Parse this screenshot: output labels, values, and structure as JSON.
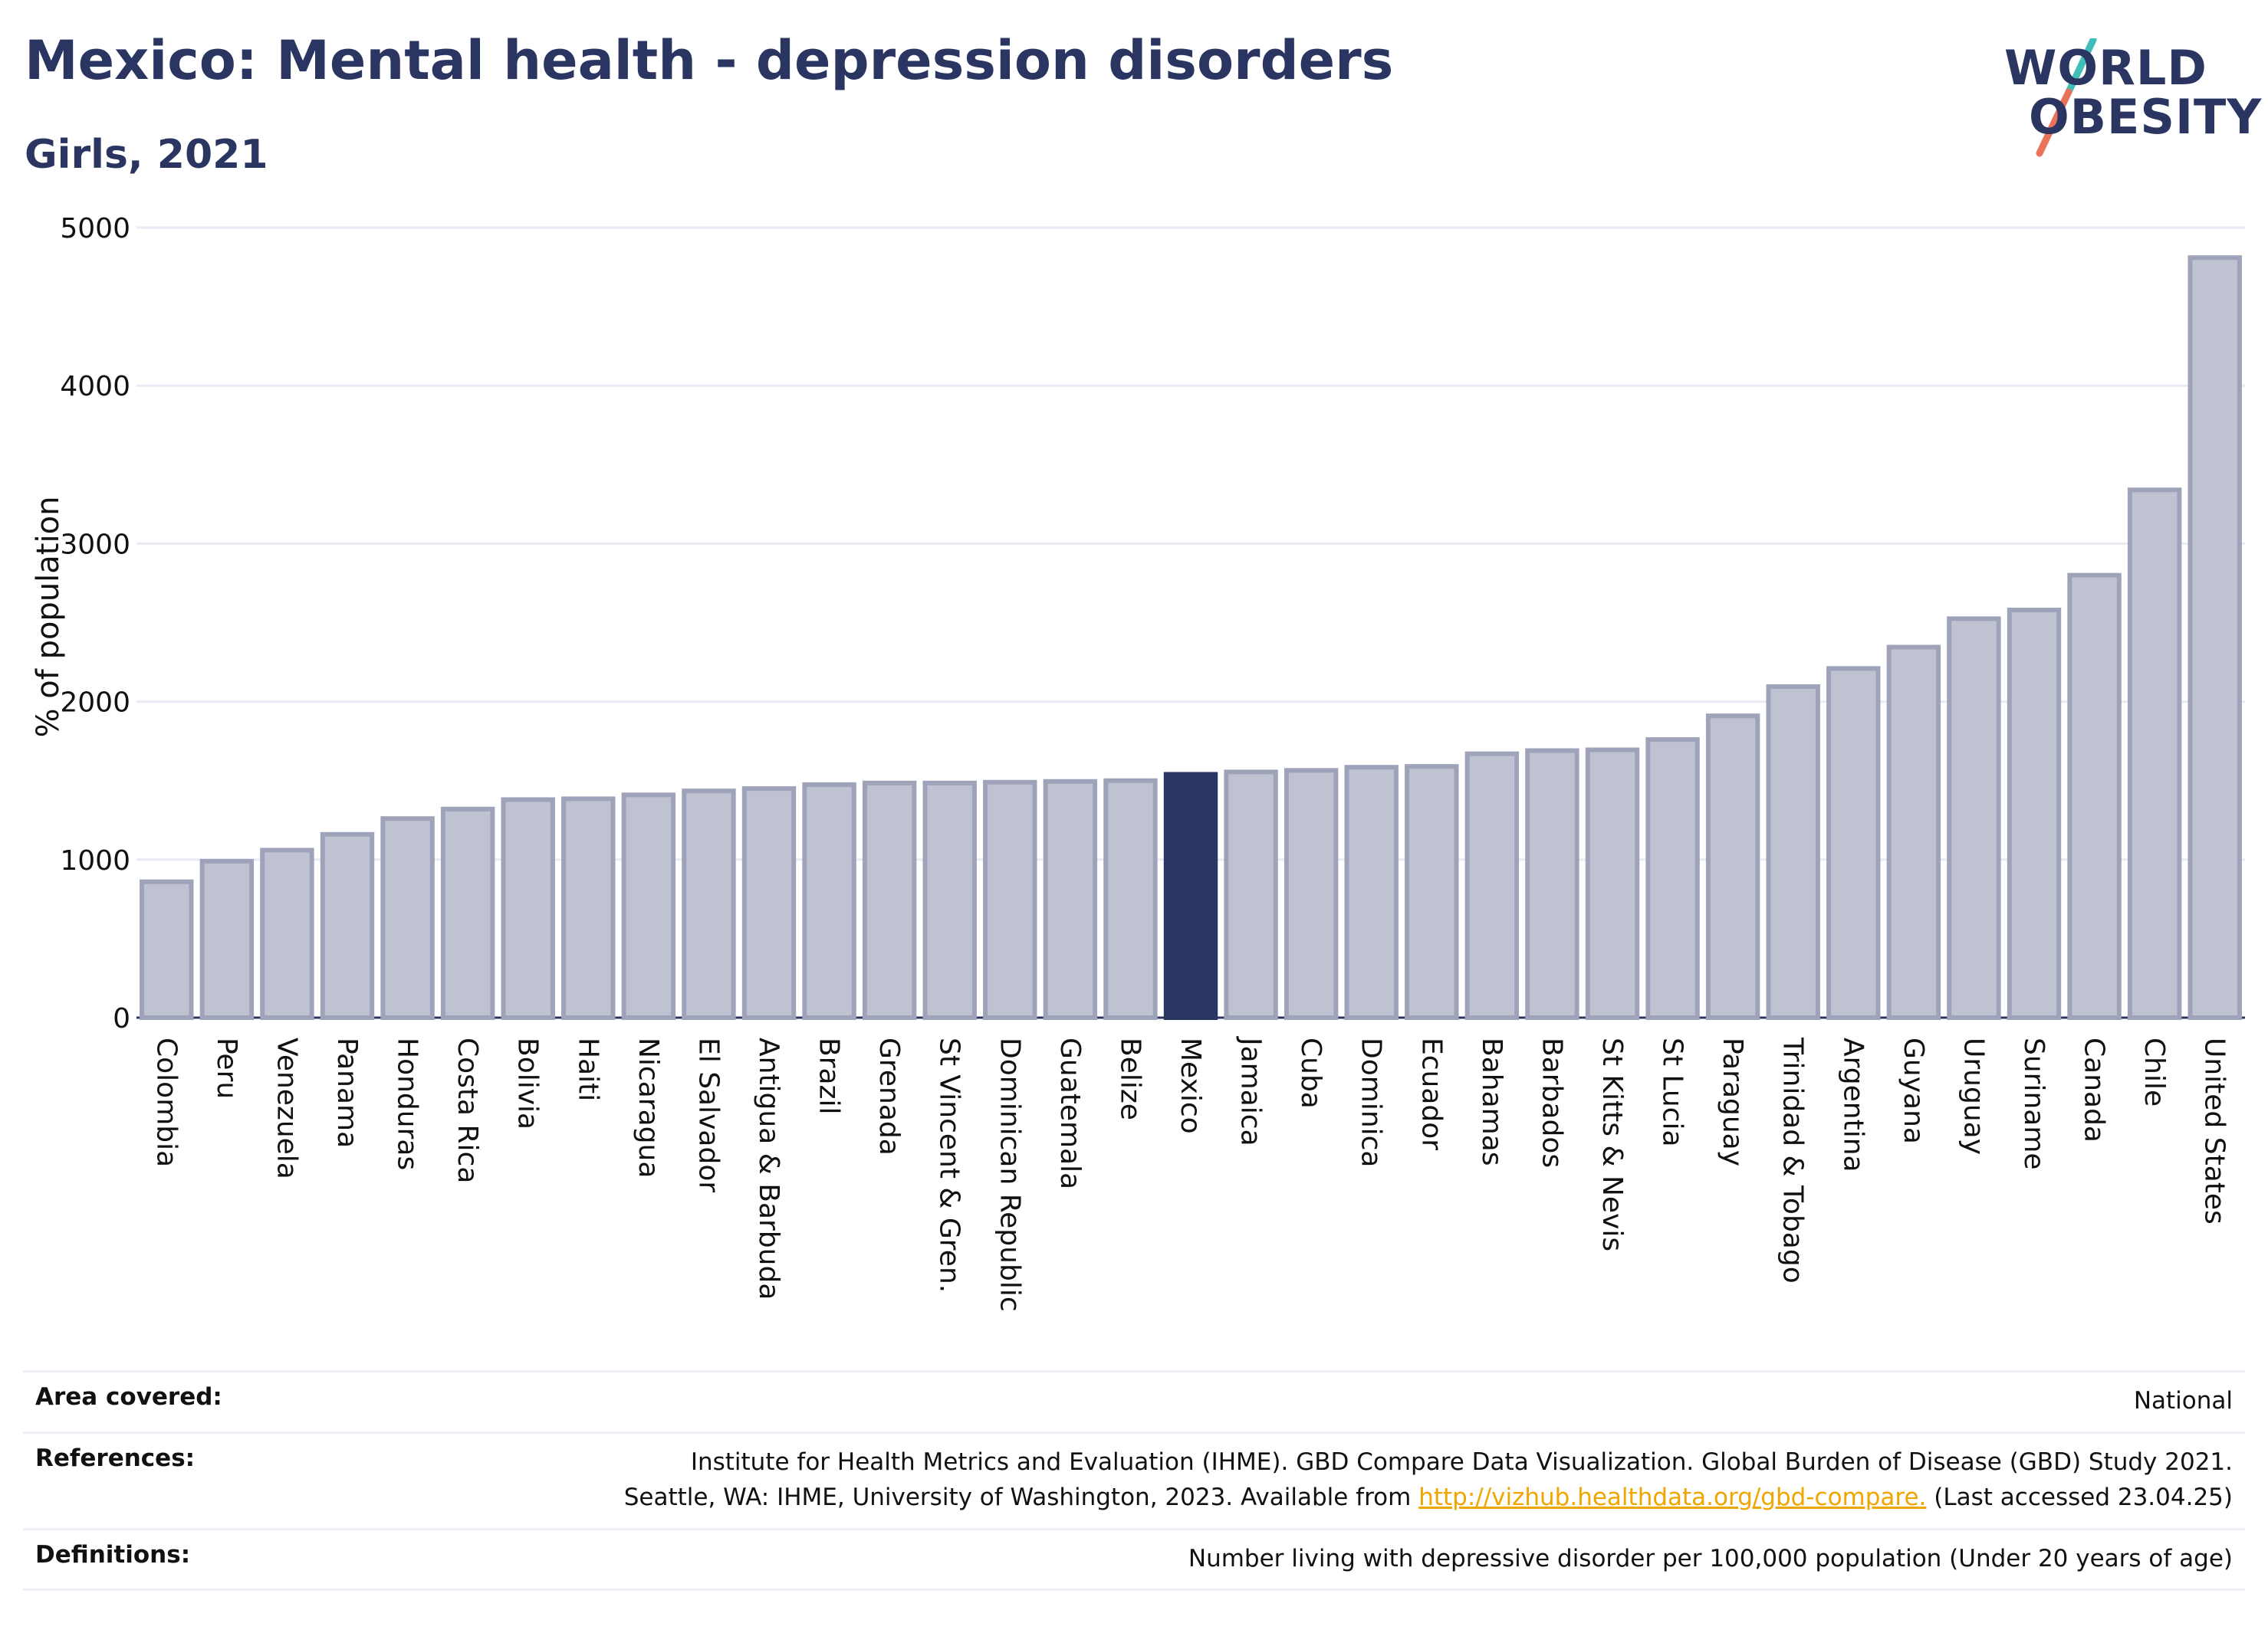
{
  "title": "Mexico: Mental health - depression disorders",
  "subtitle": "Girls, 2021",
  "logo": {
    "line1": "WORLD",
    "line2": "OBESITY",
    "slash_colors": [
      "#3fbfb8",
      "#e8735a"
    ]
  },
  "colors": {
    "bar": "#bfc2d0",
    "bar_border": "#9ea3ba",
    "highlight": "#2b3561",
    "grid": "#e9ebf2",
    "axis": "#2b3561"
  },
  "chart_data": {
    "type": "bar",
    "ylabel": "% of population",
    "xlabel": "",
    "ylim": [
      0,
      5000
    ],
    "yticks": [
      0,
      1000,
      2000,
      3000,
      4000,
      5000
    ],
    "grid": true,
    "highlight": "Mexico",
    "categories": [
      "Colombia",
      "Peru",
      "Venezuela",
      "Panama",
      "Honduras",
      "Costa Rica",
      "Bolivia",
      "Haiti",
      "Nicaragua",
      "El Salvador",
      "Antigua & Barbuda",
      "Brazil",
      "Grenada",
      "St Vincent & Gren.",
      "Dominican Republic",
      "Guatemala",
      "Belize",
      "Mexico",
      "Jamaica",
      "Cuba",
      "Dominica",
      "Ecuador",
      "Bahamas",
      "Barbados",
      "St Kitts & Nevis",
      "St Lucia",
      "Paraguay",
      "Trinidad & Tobago",
      "Argentina",
      "Guyana",
      "Uruguay",
      "Suriname",
      "Canada",
      "Chile",
      "United States"
    ],
    "values": [
      860,
      990,
      1060,
      1160,
      1260,
      1320,
      1380,
      1385,
      1410,
      1435,
      1450,
      1475,
      1485,
      1485,
      1490,
      1495,
      1500,
      1540,
      1555,
      1565,
      1585,
      1590,
      1670,
      1690,
      1695,
      1760,
      1910,
      2095,
      2210,
      2345,
      2525,
      2580,
      2800,
      3340,
      4810
    ]
  },
  "footer": {
    "area_label": "Area covered:",
    "area_value": "National",
    "references_label": "References:",
    "references_line1": "Institute for Health Metrics and Evaluation (IHME). GBD Compare Data Visualization. Global Burden of Disease (GBD) Study 2021.",
    "references_line2_pre": "Seattle, WA: IHME, University of Washington, 2023. Available from ",
    "references_link": "http://vizhub.healthdata.org/gbd-compare.",
    "references_line2_post": " (Last accessed 23.04.25)",
    "definitions_label": "Definitions:",
    "definitions_value": "Number living with depressive disorder per 100,000 population (Under 20 years of age)"
  }
}
